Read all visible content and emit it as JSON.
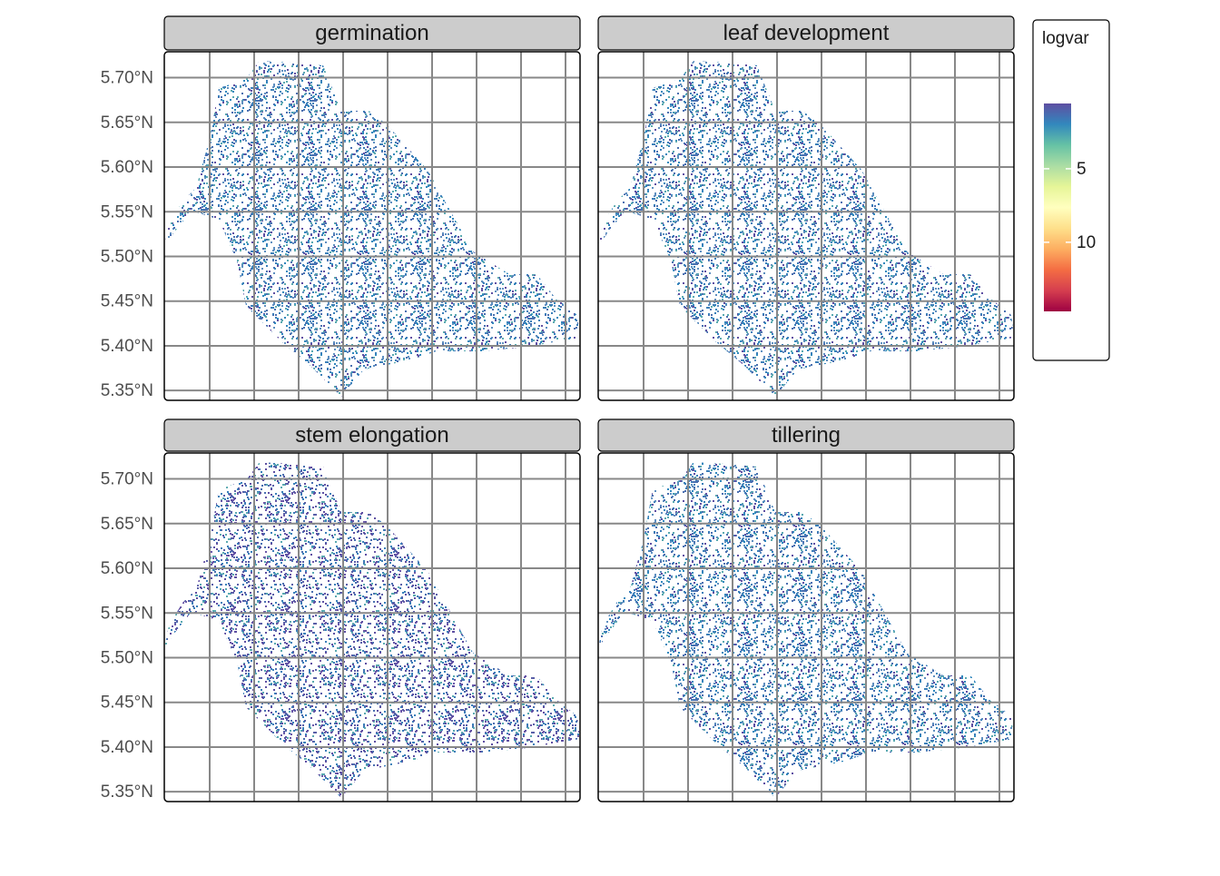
{
  "chart_data": {
    "type": "raster",
    "panels": [
      "germination",
      "leaf development",
      "stem elongation",
      "tillering"
    ],
    "ylim": [
      5.339,
      5.729
    ],
    "yticks": [
      {
        "value": 5.35,
        "label": "5.35°N"
      },
      {
        "value": 5.4,
        "label": "5.40°N"
      },
      {
        "value": 5.45,
        "label": "5.45°N"
      },
      {
        "value": 5.5,
        "label": "5.50°N"
      },
      {
        "value": 5.55,
        "label": "5.55°N"
      },
      {
        "value": 5.6,
        "label": "5.60°N"
      },
      {
        "value": 5.65,
        "label": "5.65°N"
      },
      {
        "value": 5.7,
        "label": "5.70°N"
      }
    ],
    "grid": true,
    "legend": {
      "title": "logvar",
      "lim": [
        0.56,
        14.7
      ],
      "ticks": [
        5,
        10
      ],
      "colors": [
        "#5e4fa2",
        "#3288bd",
        "#66c2a5",
        "#abdda4",
        "#e6f598",
        "#ffffbf",
        "#fee08b",
        "#fdae61",
        "#f46d43",
        "#d53e4f",
        "#9e0142"
      ]
    }
  }
}
